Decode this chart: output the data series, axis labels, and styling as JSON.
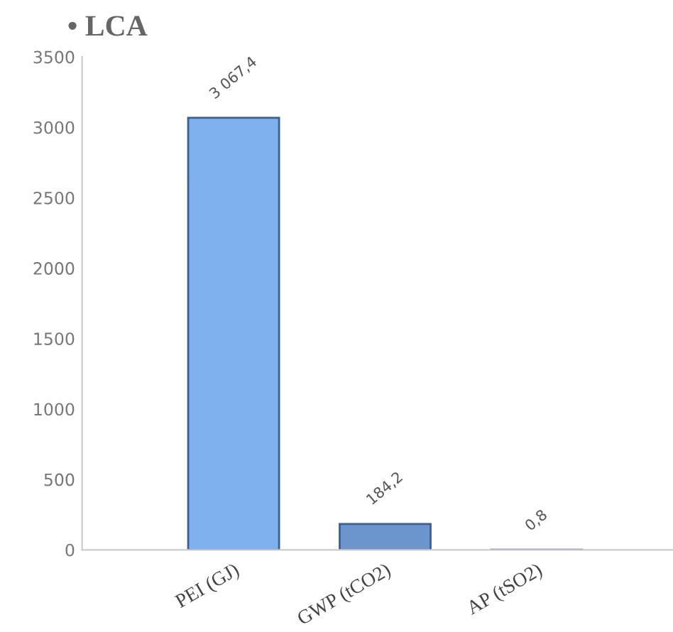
{
  "chart_data": {
    "type": "bar",
    "title": "• LCA",
    "categories": [
      "PEI (GJ)",
      "GWP (tCO2)",
      "AP (tSO2)"
    ],
    "values": [
      3067.4,
      184.2,
      0.8
    ],
    "colors": [
      "#7fb1ef",
      "#6b95cc",
      "#6b95cc"
    ],
    "value_labels": [
      "3 067,4",
      "184,2",
      "0,8"
    ],
    "ylim": [
      0,
      3500
    ],
    "yticks": [
      0,
      500,
      1000,
      1500,
      2000,
      2500,
      3000,
      3500
    ],
    "grid": false,
    "legend": false
  }
}
